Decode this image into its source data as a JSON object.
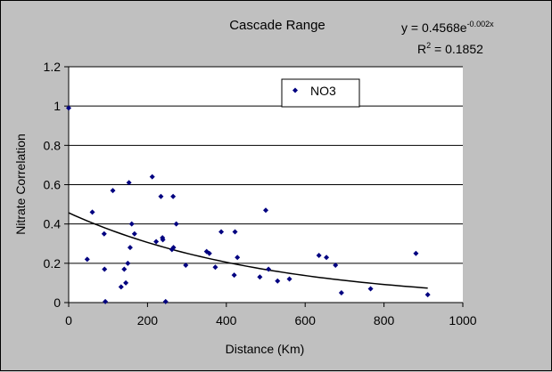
{
  "chart_data": {
    "type": "scatter",
    "title": "Cascade Range",
    "xlabel": "Distance (Km)",
    "ylabel": "Nitrate Correlation",
    "xlim": [
      0,
      1000
    ],
    "ylim": [
      0,
      1.2
    ],
    "xticks": [
      "0",
      "200",
      "400",
      "600",
      "800",
      "1000"
    ],
    "yticks": [
      "0",
      "0.2",
      "0.4",
      "0.6",
      "0.8",
      "1",
      "1.2"
    ],
    "grid": "horizontal major gridlines",
    "legend_position": "top-center",
    "plot_color": "#ffffff",
    "background_color": "#c0c0c0",
    "marker_color": "#000080",
    "series": [
      {
        "name": "NO3",
        "marker": "diamond",
        "x": [
          0,
          47,
          60,
          90,
          91,
          93,
          112,
          133,
          141,
          145,
          150,
          153,
          156,
          160,
          167,
          212,
          222,
          234,
          238,
          239,
          246,
          262,
          265,
          266,
          273,
          297,
          350,
          357,
          372,
          387,
          420,
          422,
          428,
          485,
          500,
          507,
          530,
          560,
          635,
          654,
          677,
          692,
          766,
          881,
          911
        ],
        "y": [
          0.99,
          0.22,
          0.46,
          0.35,
          0.17,
          0.005,
          0.57,
          0.08,
          0.17,
          0.1,
          0.2,
          0.61,
          0.28,
          0.4,
          0.35,
          0.64,
          0.31,
          0.54,
          0.33,
          0.32,
          0.005,
          0.27,
          0.54,
          0.28,
          0.4,
          0.19,
          0.26,
          0.25,
          0.18,
          0.36,
          0.14,
          0.36,
          0.23,
          0.13,
          0.47,
          0.17,
          0.11,
          0.12,
          0.24,
          0.23,
          0.19,
          0.05,
          0.07,
          0.25,
          0.04
        ]
      }
    ],
    "trendline": {
      "type": "exponential",
      "a": 0.4568,
      "b": -0.002,
      "equation_base": "y = 0.4568e",
      "equation_exponent": "-0.002x",
      "r2_prefix": "R",
      "r2_sup": "2",
      "r2_suffix": " = 0.1852"
    }
  }
}
